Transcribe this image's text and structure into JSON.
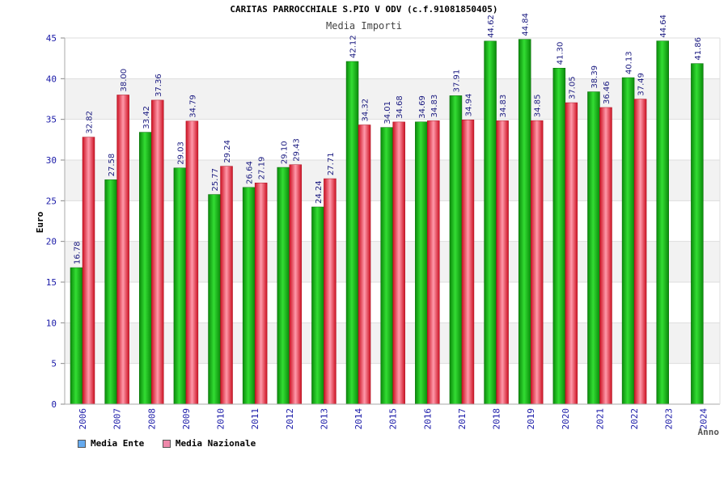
{
  "chart_data": {
    "type": "bar",
    "title": "CARITAS PARROCCHIALE S.PIO V ODV (c.f.91081850405)",
    "subtitle": "Media Importi",
    "ylabel": "Euro",
    "xlabel": "Anno",
    "ylim": [
      0,
      45
    ],
    "yticks": [
      "0",
      "5",
      "10",
      "15",
      "20",
      "25",
      "30",
      "35",
      "40",
      "45"
    ],
    "categories": [
      "2006",
      "2007",
      "2008",
      "2009",
      "2010",
      "2011",
      "2012",
      "2013",
      "2014",
      "2015",
      "2016",
      "2017",
      "2018",
      "2019",
      "2020",
      "2021",
      "2022",
      "2023",
      "2024"
    ],
    "series": [
      {
        "name": "Media Ente",
        "color": "#22bb22",
        "values": [
          16.78,
          27.58,
          33.42,
          29.03,
          25.77,
          26.64,
          29.1,
          24.24,
          42.12,
          34.01,
          34.69,
          37.91,
          44.62,
          44.84,
          41.3,
          38.39,
          40.13,
          44.64,
          41.86
        ],
        "labels": [
          "16.78",
          "27.58",
          "33.42",
          "29.03",
          "25.77",
          "26.64",
          "29.10",
          "24.24",
          "42.12",
          "34.01",
          "34.69",
          "37.91",
          "44.62",
          "44.84",
          "41.30",
          "38.39",
          "40.13",
          "44.64",
          "41.86"
        ]
      },
      {
        "name": "Media Nazionale",
        "color": "#ee3344",
        "values": [
          32.82,
          38.0,
          37.36,
          34.79,
          29.24,
          27.19,
          29.43,
          27.71,
          34.32,
          34.68,
          34.83,
          34.94,
          34.83,
          34.85,
          37.05,
          36.46,
          37.49,
          null,
          null
        ],
        "labels": [
          "32.82",
          "38.00",
          "37.36",
          "34.79",
          "29.24",
          "27.19",
          "29.43",
          "27.71",
          "34.32",
          "34.68",
          "34.83",
          "34.94",
          "34.83",
          "34.85",
          "37.05",
          "36.46",
          "37.49",
          null,
          null
        ]
      }
    ],
    "legend": [
      {
        "label": "Media Ente",
        "color": "#66aaee"
      },
      {
        "label": "Media Nazionale",
        "color": "#ee88aa"
      }
    ],
    "legend_position": "bottom-left",
    "grid": true
  }
}
